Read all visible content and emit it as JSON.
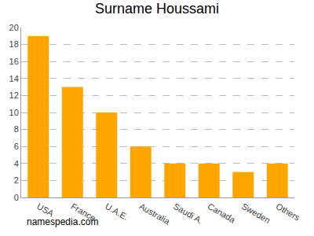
{
  "chart_data": {
    "type": "bar",
    "title": "Surname Houssami",
    "categories": [
      "USA",
      "France",
      "U.A.E.",
      "Australia",
      "Saudi A.",
      "Canada",
      "Sweden",
      "Others"
    ],
    "values": [
      19,
      13,
      10,
      6,
      4,
      4,
      3,
      4
    ],
    "color": "#ffa500",
    "ylim": [
      0,
      20
    ],
    "yticks": [
      0,
      2,
      4,
      6,
      8,
      10,
      12,
      14,
      16,
      18,
      20
    ],
    "grid": true,
    "annotations": [
      "namespedia.com"
    ]
  }
}
